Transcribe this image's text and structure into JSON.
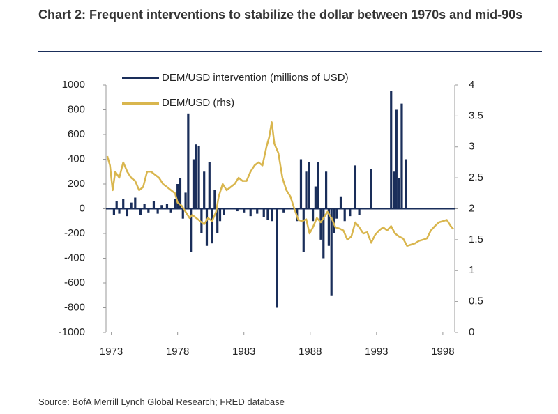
{
  "chart_data": {
    "type": "combo",
    "title": "Chart 2: Frequent interventions to stabilize the dollar between 1970s and mid-90s",
    "source": "Source: BofA Merrill Lynch Global Research; FRED database",
    "xlim": [
      1972.6,
      1998.9
    ],
    "xticks": [
      1973,
      1978,
      1983,
      1988,
      1993,
      1998
    ],
    "ylim": [
      -1000,
      1000
    ],
    "yticks": [
      -1000,
      -800,
      -600,
      -400,
      -200,
      0,
      200,
      400,
      600,
      800,
      1000
    ],
    "y2lim": [
      0,
      4
    ],
    "y2ticks": [
      0,
      0.5,
      1,
      1.5,
      2,
      2.5,
      3,
      3.5,
      4
    ],
    "legend": "top-left",
    "series": [
      {
        "name": "DEM/USD intervention (millions of USD)",
        "type": "bar",
        "color": "#1a2e5a",
        "x": [
          1973.2,
          1973.4,
          1973.6,
          1973.9,
          1974.2,
          1974.5,
          1974.8,
          1975.2,
          1975.5,
          1975.8,
          1976.2,
          1976.5,
          1976.8,
          1977.2,
          1977.5,
          1977.8,
          1978.0,
          1978.2,
          1978.4,
          1978.6,
          1978.8,
          1979.0,
          1979.2,
          1979.4,
          1979.6,
          1979.8,
          1980.0,
          1980.2,
          1980.4,
          1980.6,
          1980.8,
          1981.0,
          1981.2,
          1981.5,
          1982.5,
          1983.0,
          1983.5,
          1984.0,
          1984.5,
          1984.8,
          1985.1,
          1985.5,
          1986.0,
          1987.0,
          1987.3,
          1987.5,
          1987.7,
          1987.9,
          1988.2,
          1988.4,
          1988.6,
          1988.8,
          1989.0,
          1989.2,
          1989.4,
          1989.6,
          1989.8,
          1990.0,
          1990.3,
          1990.6,
          1991.0,
          1991.4,
          1991.7,
          1992.6,
          1994.1,
          1994.3,
          1994.5,
          1994.7,
          1994.9,
          1995.2
        ],
        "values": [
          -50,
          60,
          -40,
          80,
          -60,
          50,
          90,
          -50,
          40,
          -30,
          60,
          -40,
          30,
          40,
          -30,
          80,
          200,
          250,
          -80,
          130,
          770,
          -350,
          400,
          520,
          510,
          -200,
          300,
          -300,
          380,
          -280,
          150,
          -200,
          -100,
          -50,
          -20,
          -30,
          -60,
          -40,
          -70,
          -90,
          -100,
          -800,
          -30,
          -100,
          400,
          -350,
          300,
          380,
          -100,
          180,
          380,
          -250,
          -400,
          300,
          -300,
          -700,
          -200,
          -80,
          100,
          -100,
          -60,
          350,
          -50,
          320,
          950,
          300,
          800,
          250,
          850,
          400
        ]
      },
      {
        "name": "DEM/USD (rhs)",
        "type": "line",
        "axis": "y2",
        "color": "#d9b64e",
        "x": [
          1972.7,
          1972.9,
          1973.1,
          1973.3,
          1973.6,
          1973.9,
          1974.2,
          1974.5,
          1974.8,
          1975.1,
          1975.4,
          1975.7,
          1976.0,
          1976.3,
          1976.6,
          1976.9,
          1977.2,
          1977.5,
          1977.8,
          1978.0,
          1978.3,
          1978.6,
          1978.9,
          1979.1,
          1979.4,
          1979.7,
          1980.0,
          1980.3,
          1980.6,
          1980.9,
          1981.1,
          1981.4,
          1981.7,
          1982.0,
          1982.3,
          1982.6,
          1982.9,
          1983.2,
          1983.5,
          1983.8,
          1984.1,
          1984.4,
          1984.7,
          1984.9,
          1985.1,
          1985.3,
          1985.6,
          1985.9,
          1986.2,
          1986.5,
          1986.8,
          1987.1,
          1987.4,
          1987.7,
          1987.95,
          1988.2,
          1988.5,
          1988.8,
          1989.0,
          1989.3,
          1989.6,
          1989.9,
          1990.2,
          1990.5,
          1990.8,
          1991.1,
          1991.4,
          1991.7,
          1992.0,
          1992.3,
          1992.6,
          1992.9,
          1993.2,
          1993.5,
          1993.8,
          1994.1,
          1994.4,
          1994.7,
          1995.0,
          1995.3,
          1995.6,
          1995.9,
          1996.2,
          1996.5,
          1996.8,
          1997.1,
          1997.4,
          1997.7,
          1998.0,
          1998.3,
          1998.6,
          1998.8
        ],
        "values": [
          2.85,
          2.7,
          2.3,
          2.6,
          2.5,
          2.75,
          2.6,
          2.5,
          2.45,
          2.3,
          2.35,
          2.6,
          2.6,
          2.55,
          2.5,
          2.4,
          2.35,
          2.3,
          2.25,
          2.1,
          2.05,
          1.95,
          1.85,
          1.9,
          1.85,
          1.8,
          1.75,
          1.85,
          1.8,
          1.95,
          2.2,
          2.4,
          2.3,
          2.35,
          2.4,
          2.5,
          2.45,
          2.45,
          2.6,
          2.7,
          2.75,
          2.7,
          3.0,
          3.15,
          3.4,
          3.05,
          2.9,
          2.5,
          2.3,
          2.2,
          2.0,
          1.82,
          1.8,
          1.83,
          1.6,
          1.7,
          1.85,
          1.78,
          1.85,
          1.95,
          1.85,
          1.7,
          1.68,
          1.65,
          1.5,
          1.55,
          1.78,
          1.7,
          1.6,
          1.62,
          1.45,
          1.58,
          1.65,
          1.7,
          1.65,
          1.72,
          1.6,
          1.55,
          1.52,
          1.4,
          1.42,
          1.44,
          1.48,
          1.5,
          1.52,
          1.65,
          1.72,
          1.78,
          1.8,
          1.82,
          1.72,
          1.67
        ]
      }
    ]
  }
}
